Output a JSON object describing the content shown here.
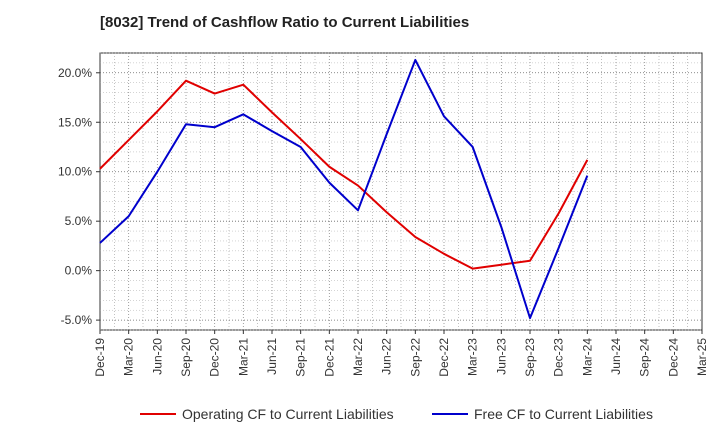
{
  "chart_data": {
    "type": "line",
    "title": "[8032]  Trend of Cashflow Ratio to Current Liabilities",
    "xlabel": "",
    "ylabel": "",
    "ylim": [
      -6,
      22
    ],
    "yticks": [
      -5,
      0,
      5,
      10,
      15,
      20
    ],
    "ytick_labels": [
      "-5.0%",
      "0.0%",
      "5.0%",
      "10.0%",
      "15.0%",
      "20.0%"
    ],
    "categories": [
      "Dec-19",
      "Mar-20",
      "Jun-20",
      "Sep-20",
      "Dec-20",
      "Mar-21",
      "Jun-21",
      "Sep-21",
      "Dec-21",
      "Mar-22",
      "Jun-22",
      "Sep-22",
      "Dec-22",
      "Mar-23",
      "Jun-23",
      "Sep-23",
      "Dec-23",
      "Mar-24",
      "Jun-24",
      "Sep-24",
      "Dec-24",
      "Mar-25"
    ],
    "grid": true,
    "legend_position": "bottom",
    "series": [
      {
        "name": "Operating CF to Current Liabilities",
        "color": "#e00000",
        "values": [
          10.3,
          13.2,
          16.1,
          19.2,
          17.9,
          18.8,
          16.0,
          13.3,
          10.5,
          8.6,
          5.9,
          3.4,
          1.7,
          0.2,
          0.6,
          1.0,
          5.8,
          11.2,
          null,
          null,
          null,
          null
        ]
      },
      {
        "name": "Free CF to Current Liabilities",
        "color": "#0000cc",
        "values": [
          2.8,
          5.5,
          10.0,
          14.8,
          14.5,
          15.8,
          14.1,
          12.5,
          8.9,
          6.1,
          13.8,
          21.3,
          15.6,
          12.5,
          4.4,
          -4.8,
          2.3,
          9.6,
          null,
          null,
          null,
          null
        ]
      }
    ]
  }
}
